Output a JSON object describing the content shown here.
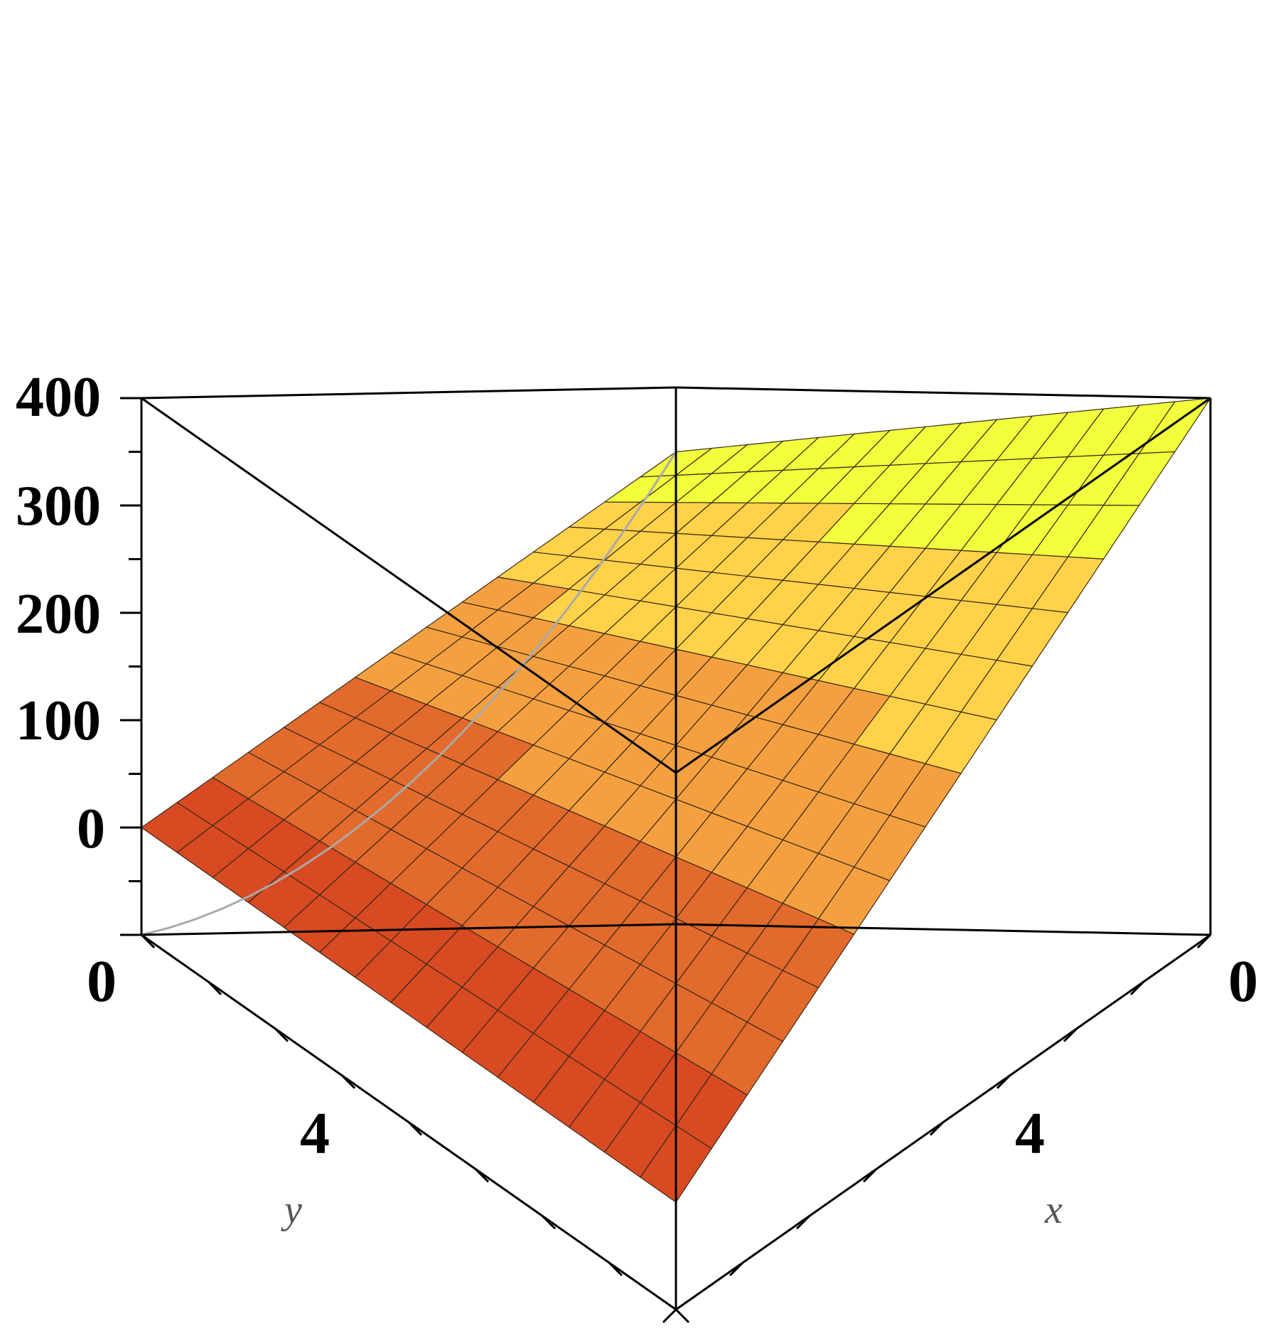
{
  "chart_data": {
    "type": "surface3d",
    "title": "",
    "axes": {
      "x": {
        "label": "x",
        "range": [
          0,
          8
        ],
        "tick_labels": [
          "0",
          "4"
        ]
      },
      "y": {
        "label": "y",
        "range": [
          0,
          8
        ],
        "tick_labels": [
          "0",
          "4"
        ]
      },
      "z": {
        "label": "",
        "range": [
          -100,
          400
        ],
        "tick_labels": [
          "400",
          "300",
          "200",
          "100",
          "0"
        ]
      }
    },
    "surface": {
      "grid_lines": 15,
      "corner_values": [
        {
          "x": 0,
          "y": 0,
          "z": 340
        },
        {
          "x": 8,
          "y": 0,
          "z": 400
        },
        {
          "x": 0,
          "y": 8,
          "z": 0
        },
        {
          "x": 8,
          "y": 8,
          "z": 0
        }
      ],
      "colormap": [
        "#ff2a1a",
        "#2ad0e0",
        "#3be04a",
        "#f2ff3c",
        "#ffd24a",
        "#f5a040",
        "#e26a2c",
        "#d84a22"
      ]
    },
    "grid": false,
    "legend": "none",
    "colors": {
      "box": "#000000",
      "boundary_curve": "#a9a9a9",
      "mesh": "#3a2a1a"
    }
  }
}
